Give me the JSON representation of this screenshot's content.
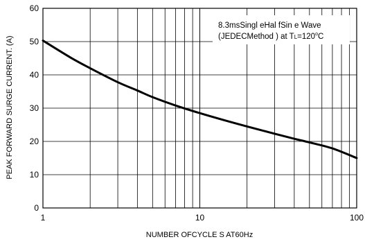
{
  "chart_data": {
    "type": "line",
    "title": "",
    "xlabel": "NUMBER OFCYCLE S AT60Hz",
    "ylabel": "PEAK FORWARD SURGE CURRENT. (A)",
    "xscale": "log",
    "xlim": [
      1,
      100
    ],
    "ylim": [
      0,
      60
    ],
    "x_tick_labels": [
      "1",
      "10",
      "100"
    ],
    "y_tick_labels": [
      "0",
      "10",
      "20",
      "30",
      "40",
      "50",
      "60"
    ],
    "grid": true,
    "annotation": {
      "line1": "8.3msSingl eHal fSin e Wave",
      "line2_prefix": "(JEDECMethod ) at T",
      "line2_sub": "L",
      "line2_mid": "=120",
      "line2_sup": "o",
      "line2_suffix": "C"
    },
    "series": [
      {
        "x": [
          1,
          1.5,
          2,
          3,
          4,
          5,
          7,
          10,
          15,
          20,
          30,
          40,
          50,
          70,
          100
        ],
        "y": [
          50.3,
          45.2,
          42.0,
          37.8,
          35.3,
          33.3,
          30.8,
          28.5,
          26.1,
          24.5,
          22.3,
          20.8,
          19.7,
          17.9,
          15.0
        ]
      }
    ]
  }
}
